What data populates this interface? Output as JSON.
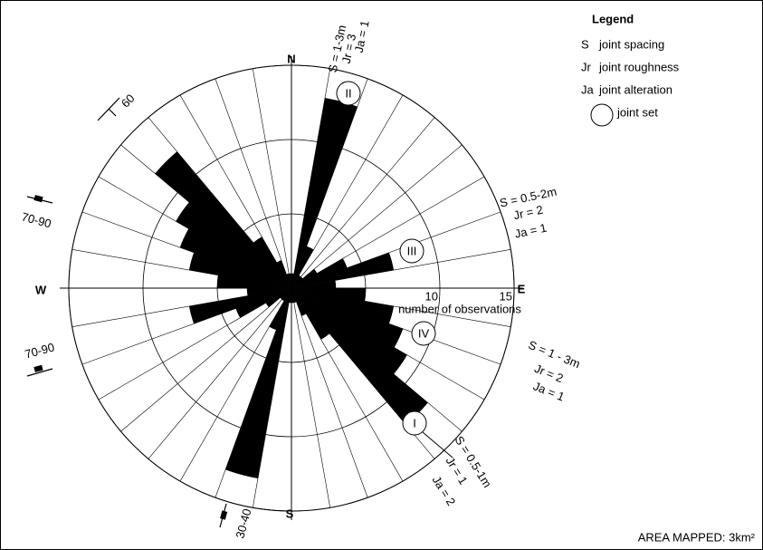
{
  "chart_data": {
    "type": "rose",
    "compass": [
      "N",
      "E",
      "S",
      "W"
    ],
    "values": [
      1,
      13,
      3,
      1,
      1,
      2,
      4,
      7,
      3,
      5,
      7,
      8,
      9,
      12,
      4,
      2,
      1,
      1
    ],
    "color": "#000000",
    "rlim": [
      0,
      15
    ],
    "rticks": [
      5,
      10,
      15
    ],
    "r_label": "number of observations",
    "joint_sets": [
      {
        "label": "II",
        "props": [
          "S = 1-3m",
          "Jr = 3",
          "Ja = 1"
        ]
      },
      {
        "label": "III",
        "props": [
          "S = 0.5-2m",
          "Jr = 2",
          "Ja = 1"
        ]
      },
      {
        "label": "IV",
        "props": [
          "S = 1 - 3m",
          "Jr = 2",
          "Ja = 1"
        ]
      },
      {
        "label": "I",
        "props": [
          "S = 0.5-1m",
          "Jr = 1",
          "Ja = 2"
        ]
      }
    ],
    "dips": [
      "60",
      "70-90",
      "70-90",
      "30-40"
    ],
    "legend": {
      "title": "Legend",
      "items": [
        {
          "symbol": "S",
          "text": "joint spacing"
        },
        {
          "symbol": "Jr",
          "text": "joint roughness"
        },
        {
          "symbol": "Ja",
          "text": "joint alteration"
        },
        {
          "text": "joint set"
        }
      ]
    },
    "footer": "AREA MAPPED: 3km²"
  }
}
